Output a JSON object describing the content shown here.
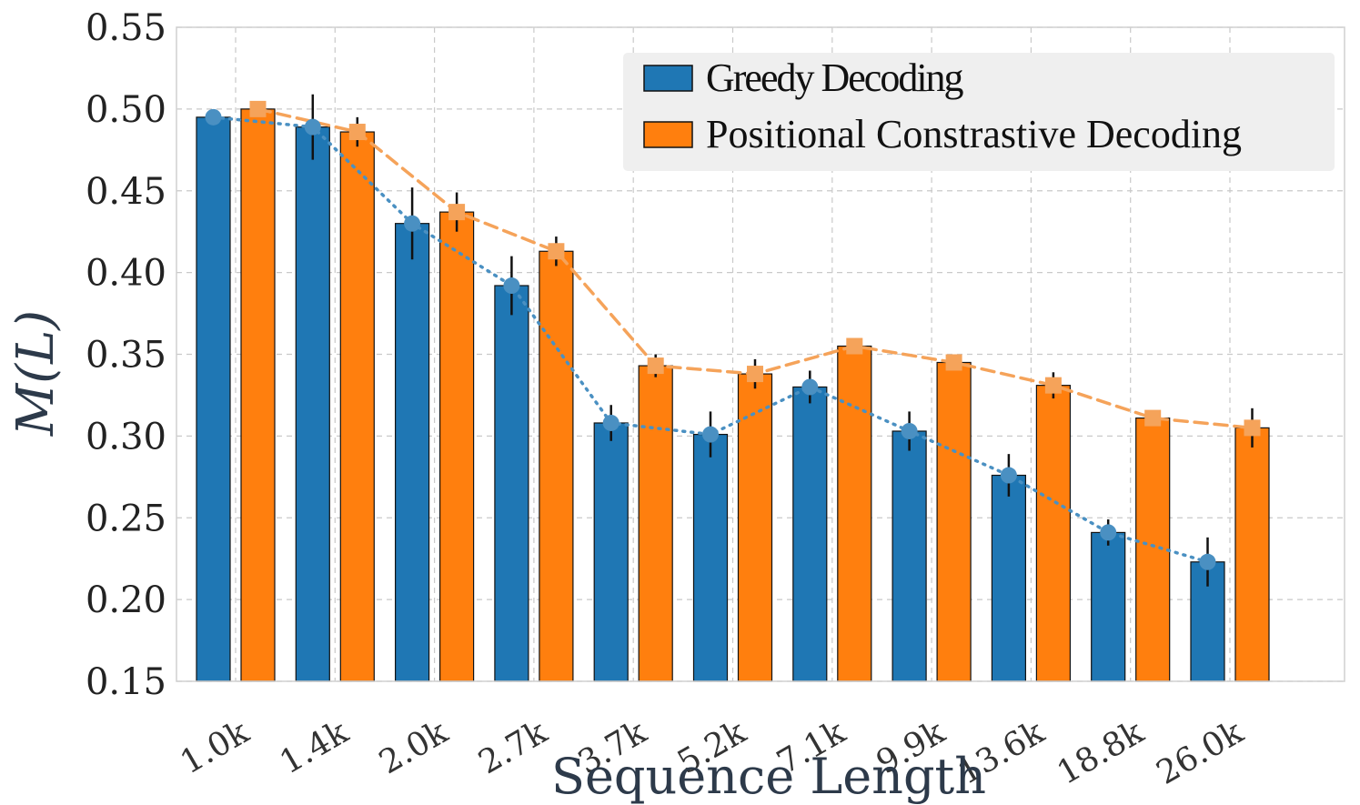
{
  "chart_data": {
    "type": "bar",
    "title": "",
    "xlabel": "Sequence Length",
    "ylabel": "M(L)",
    "ylim": [
      0.15,
      0.55
    ],
    "yticks": [
      "0.15",
      "0.20",
      "0.25",
      "0.30",
      "0.35",
      "0.40",
      "0.45",
      "0.50",
      "0.55"
    ],
    "grid": true,
    "legend_position": "top-right",
    "categories": [
      "1.0k",
      "1.4k",
      "2.0k",
      "2.7k",
      "3.7k",
      "5.2k",
      "7.1k",
      "9.9k",
      "13.6k",
      "18.8k",
      "26.0k"
    ],
    "series": [
      {
        "name": "Greedy Decoding",
        "color": "#1f77b4",
        "line_color": "#4a90c2",
        "values": [
          0.495,
          0.489,
          0.43,
          0.392,
          0.308,
          0.301,
          0.33,
          0.303,
          0.276,
          0.241,
          0.223
        ],
        "errors": [
          0.003,
          0.02,
          0.022,
          0.018,
          0.011,
          0.014,
          0.01,
          0.012,
          0.013,
          0.008,
          0.015
        ]
      },
      {
        "name": "Positional Constrastive Decoding",
        "color": "#ff7f0e",
        "line_color": "#f5a35a",
        "values": [
          0.5,
          0.486,
          0.437,
          0.413,
          0.343,
          0.338,
          0.355,
          0.345,
          0.331,
          0.311,
          0.305
        ],
        "errors": [
          0.003,
          0.009,
          0.012,
          0.009,
          0.007,
          0.009,
          0.004,
          0.004,
          0.008,
          0.002,
          0.012
        ]
      }
    ]
  }
}
